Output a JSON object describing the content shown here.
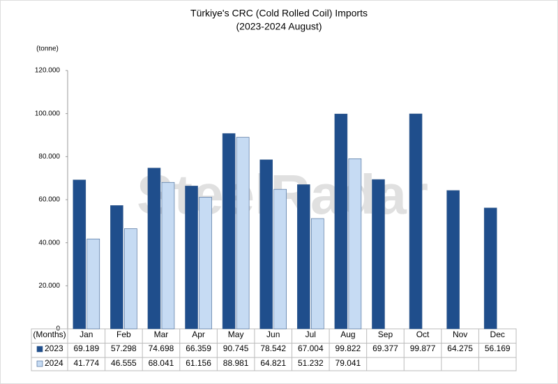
{
  "chart_data": {
    "type": "bar",
    "title": "Türkiye's CRC (Cold Rolled Coil) Imports",
    "subtitle": "(2023-2024 August)",
    "y_label": "(tonne)",
    "x_label": "(Months)",
    "watermark": "SteelRadar",
    "categories": [
      "Jan",
      "Feb",
      "Mar",
      "Apr",
      "May",
      "Jun",
      "Jul",
      "Aug",
      "Sep",
      "Oct",
      "Nov",
      "Dec"
    ],
    "series": [
      {
        "name": "2023",
        "color": "#1f4e8c",
        "values": [
          69189,
          57298,
          74698,
          66359,
          90745,
          78542,
          67004,
          99822,
          69377,
          99877,
          64275,
          56169
        ],
        "value_labels": [
          "69.189",
          "57.298",
          "74.698",
          "66.359",
          "90.745",
          "78.542",
          "67.004",
          "99.822",
          "69.377",
          "99.877",
          "64.275",
          "56.169"
        ]
      },
      {
        "name": "2024",
        "color": "#c6dbf3",
        "values": [
          41774,
          46555,
          68041,
          61156,
          88981,
          64821,
          51232,
          79041,
          null,
          null,
          null,
          null
        ],
        "value_labels": [
          "41.774",
          "46.555",
          "68.041",
          "61.156",
          "88.981",
          "64.821",
          "51.232",
          "79.041",
          null,
          null,
          null,
          null
        ]
      }
    ],
    "ylim": [
      0,
      120000
    ],
    "yticks": [
      0,
      {
        "value": 20000,
        "label": "20.000"
      },
      {
        "value": 40000,
        "label": "40.000"
      },
      {
        "value": 60000,
        "label": "60.000"
      },
      {
        "value": 80000,
        "label": "80.000"
      },
      {
        "value": 100000,
        "label": "100.000"
      },
      {
        "value": 120000,
        "label": "120.000"
      }
    ],
    "grid": false
  }
}
